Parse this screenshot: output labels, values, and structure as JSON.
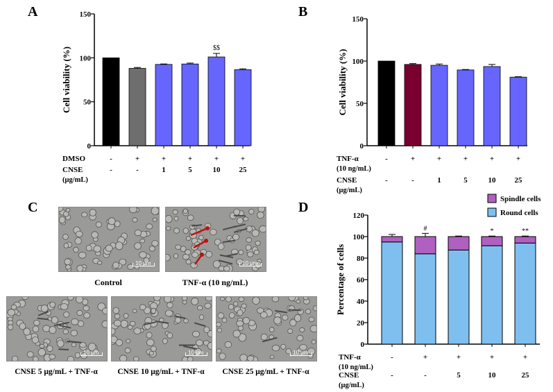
{
  "panels": {
    "a": "A",
    "b": "B",
    "c": "C",
    "d": "D"
  },
  "chart_data": [
    {
      "type": "bar",
      "title": "",
      "ylabel": "Cell viability (%)",
      "ylim": [
        0,
        150
      ],
      "yticks": [
        "0",
        "50",
        "100",
        "150"
      ],
      "values": [
        100,
        88,
        92.5,
        93,
        101,
        86.5
      ],
      "errors": [
        0,
        1,
        0.5,
        1,
        4,
        1
      ],
      "colors": [
        "#000000",
        "#6e6e6e",
        "#6666ff",
        "#6666ff",
        "#6666ff",
        "#6666ff"
      ],
      "annotations": [
        "",
        "",
        "",
        "",
        "$$",
        ""
      ],
      "treatment_rows": [
        {
          "label": "DMSO",
          "values": [
            "-",
            "+",
            "+",
            "+",
            "+",
            "+"
          ]
        },
        {
          "label": "CNSE",
          "sublabel": "(μg/mL)",
          "values": [
            "-",
            "-",
            "1",
            "5",
            "10",
            "25"
          ]
        }
      ]
    },
    {
      "type": "bar",
      "title": "",
      "ylabel": "Cell viability (%)",
      "ylim": [
        0,
        150
      ],
      "yticks": [
        "0",
        "50",
        "100",
        "150"
      ],
      "values": [
        100,
        96,
        95,
        89.5,
        93.5,
        81
      ],
      "errors": [
        0,
        1,
        1.5,
        0.5,
        2.5,
        0.5
      ],
      "colors": [
        "#000000",
        "#7a0030",
        "#6666ff",
        "#6666ff",
        "#6666ff",
        "#6666ff"
      ],
      "annotations": [
        "",
        "",
        "",
        "",
        "",
        ""
      ],
      "treatment_rows": [
        {
          "label": "TNF-α",
          "sublabel": "(10 ng/mL)",
          "values": [
            "-",
            "+",
            "+",
            "+",
            "+",
            "+"
          ]
        },
        {
          "label": "CNSE",
          "sublabel": "(μg/mL)",
          "values": [
            "-",
            "-",
            "1",
            "5",
            "10",
            "25"
          ]
        }
      ]
    },
    {
      "type": "bar",
      "stacked": true,
      "title": "",
      "ylabel": "Percentage of cells",
      "ylim": [
        0,
        120
      ],
      "yticks": [
        "0",
        "20",
        "40",
        "60",
        "80",
        "100",
        "120"
      ],
      "series": [
        {
          "name": "Round cells",
          "color": "#7fbfef",
          "values": [
            95,
            84,
            87.5,
            91.5,
            94
          ],
          "errors": [
            1,
            3,
            0.5,
            0.5,
            0.5
          ]
        },
        {
          "name": "Spindle cells",
          "color": "#b060c0",
          "values": [
            5,
            16,
            12.5,
            8.5,
            6
          ],
          "errors": [
            2,
            3,
            0.5,
            0.5,
            0.5
          ]
        }
      ],
      "annotations": [
        "",
        "#",
        "",
        "*",
        "**"
      ],
      "legend": [
        "Spindle cells",
        "Round cells"
      ],
      "treatment_rows": [
        {
          "label": "TNF-α",
          "sublabel": "(10 ng/mL)",
          "values": [
            "-",
            "+",
            "+",
            "+",
            "+"
          ]
        },
        {
          "label": "CNSE",
          "sublabel": "(μg/mL)",
          "values": [
            "-",
            "-",
            "5",
            "10",
            "25"
          ]
        }
      ]
    }
  ],
  "micrographs": {
    "scale_label": "10 μm",
    "captions": {
      "control": "Control",
      "tnf": "TNF-α (10 ng/mL)",
      "cnse5": "CNSE 5 μg/mL + TNF-α",
      "cnse10": "CNSE 10 μg/mL + TNF-α",
      "cnse25": "CNSE 25 μg/mL + TNF-α"
    }
  }
}
